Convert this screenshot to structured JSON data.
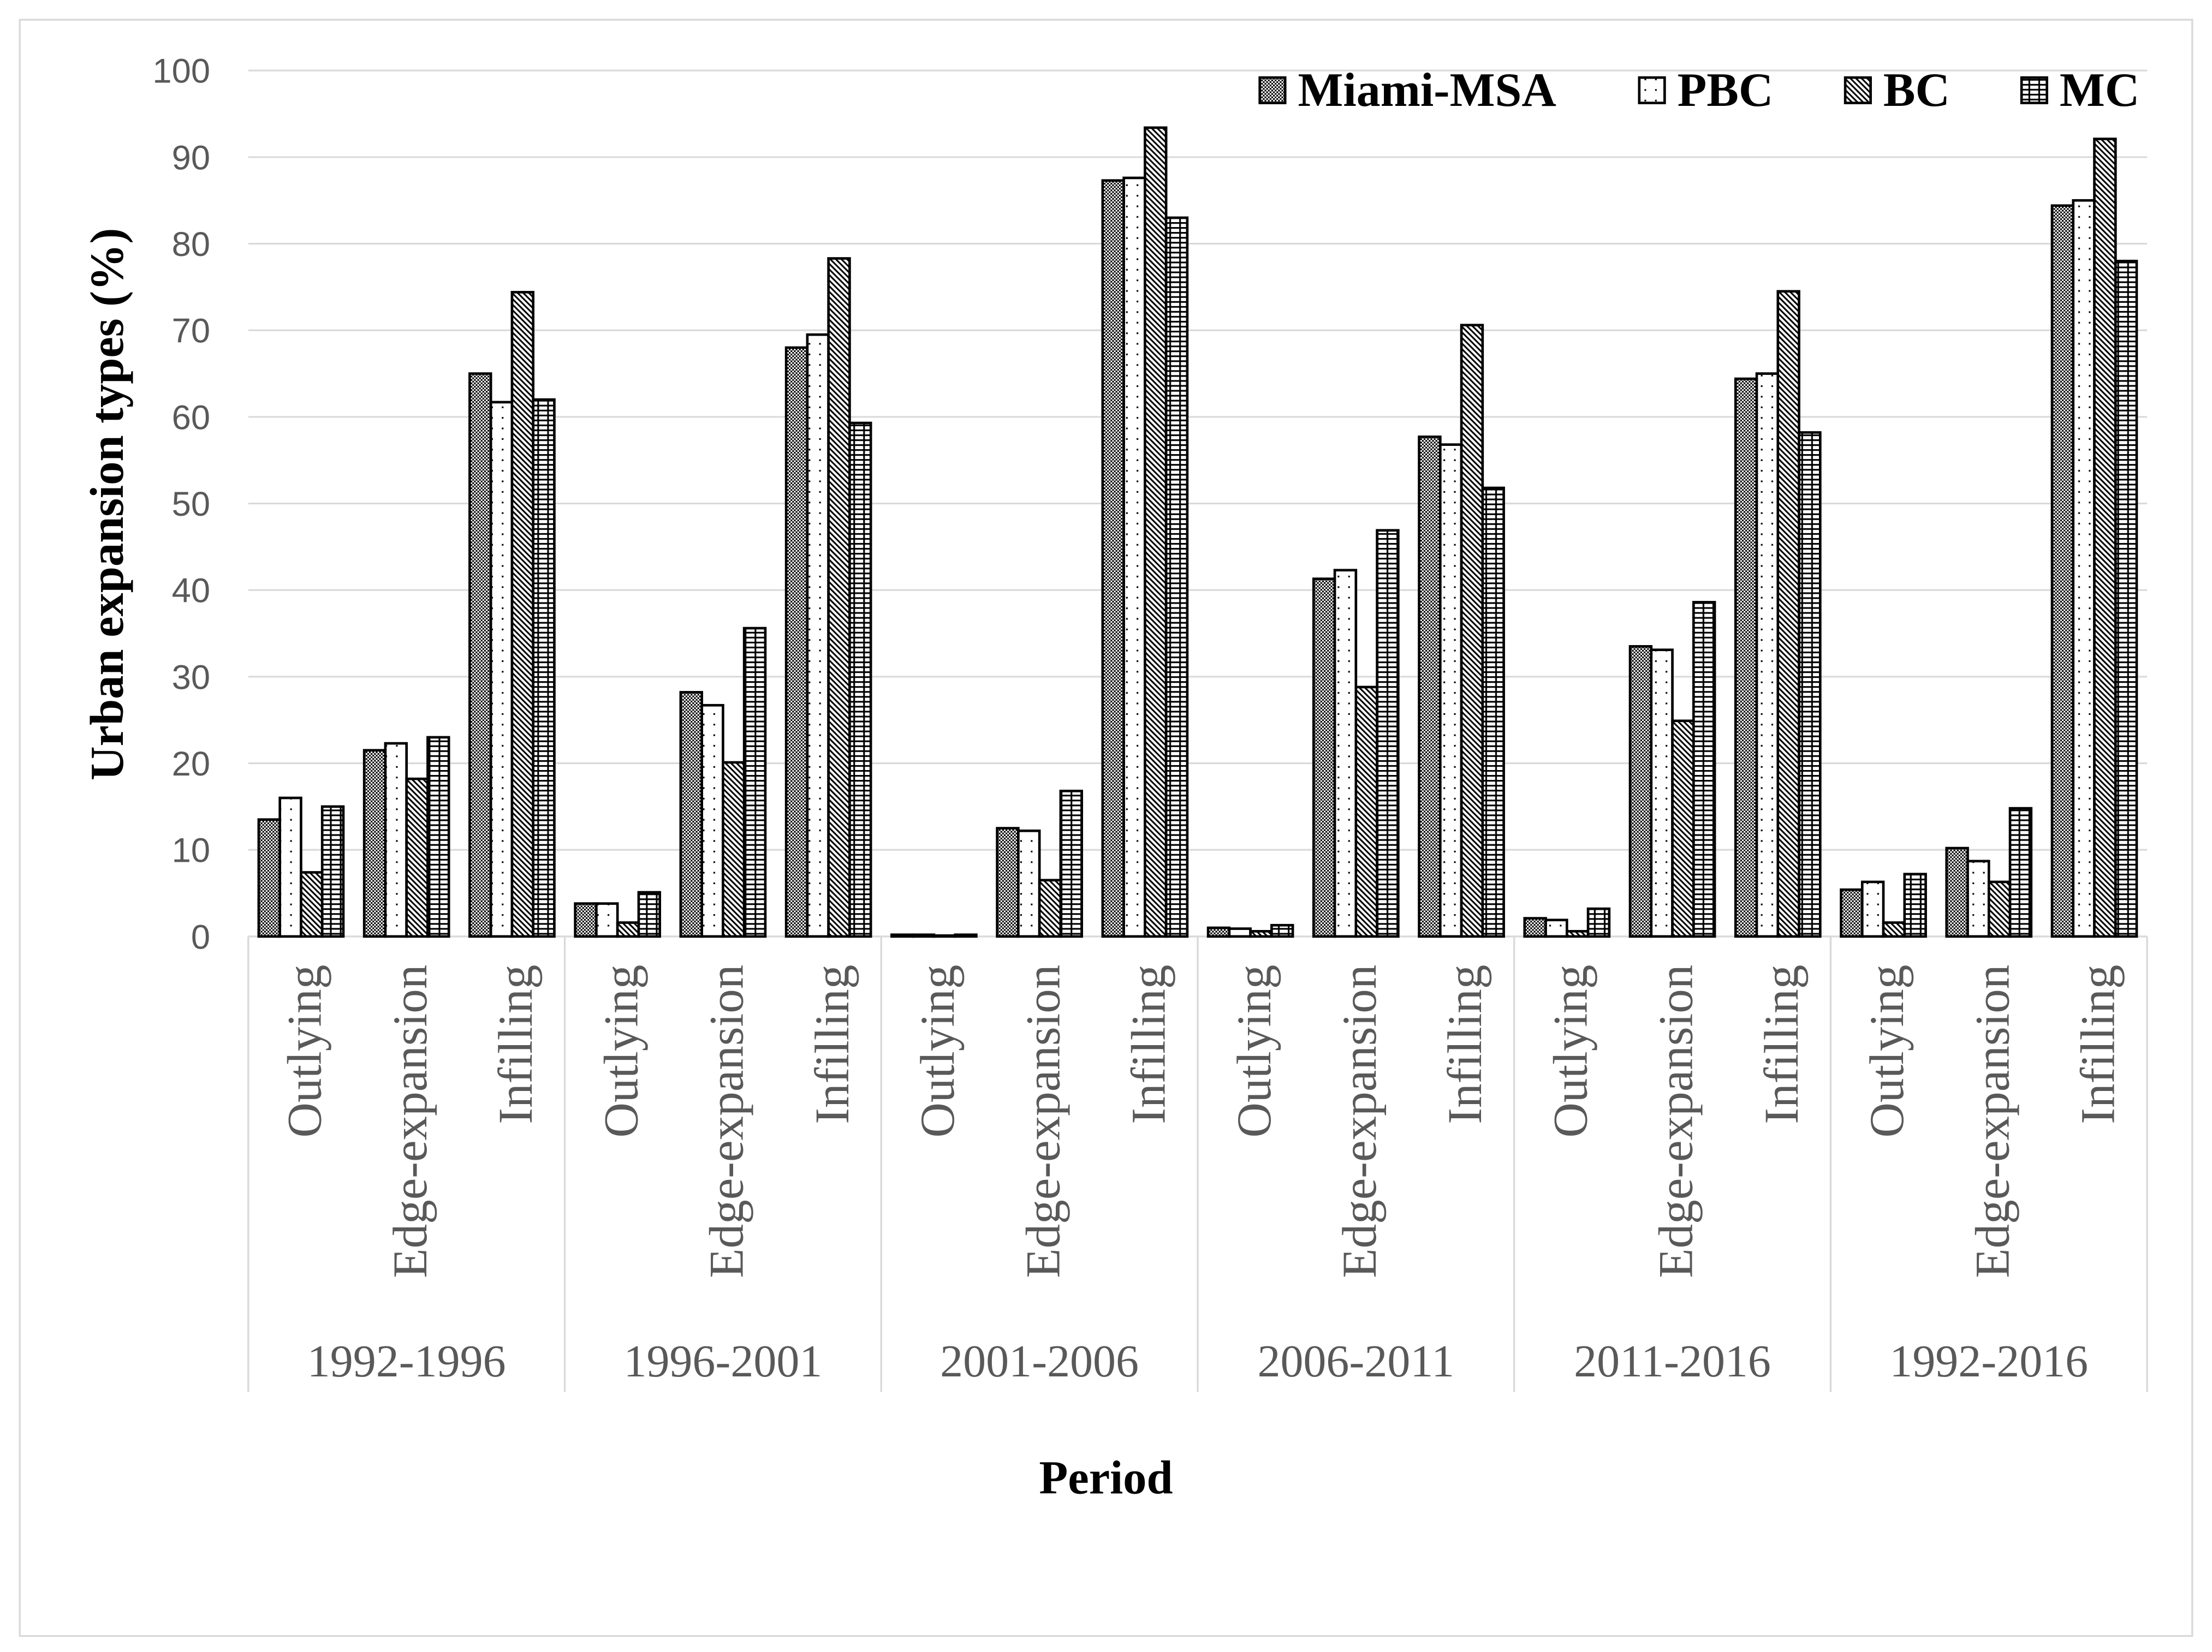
{
  "chart_data": {
    "type": "bar",
    "xlabel": "Period",
    "ylabel": "Urban expansion types (%)",
    "ylim": [
      0,
      100
    ],
    "yticks": [
      0,
      10,
      20,
      30,
      40,
      50,
      60,
      70,
      80,
      90,
      100
    ],
    "grid": true,
    "legend_position": "top-right",
    "categories": [
      {
        "period": "1992-1996",
        "types": [
          "Outlying",
          "Edge-expansion",
          "Infilling"
        ]
      },
      {
        "period": "1996-2001",
        "types": [
          "Outlying",
          "Edge-expansion",
          "Infilling"
        ]
      },
      {
        "period": "2001-2006",
        "types": [
          "Outlying",
          "Edge-expansion",
          "Infilling"
        ]
      },
      {
        "period": "2006-2011",
        "types": [
          "Outlying",
          "Edge-expansion",
          "Infilling"
        ]
      },
      {
        "period": "2011-2016",
        "types": [
          "Outlying",
          "Edge-expansion",
          "Infilling"
        ]
      },
      {
        "period": "1992-2016",
        "types": [
          "Outlying",
          "Edge-expansion",
          "Infilling"
        ]
      }
    ],
    "series": [
      {
        "name": "Miami-MSA",
        "values": [
          [
            13.5,
            21.5,
            65.0
          ],
          [
            3.8,
            28.2,
            68.0
          ],
          [
            0.2,
            12.5,
            87.3
          ],
          [
            1.0,
            41.3,
            57.7
          ],
          [
            2.1,
            33.5,
            64.4
          ],
          [
            5.4,
            10.2,
            84.4
          ]
        ]
      },
      {
        "name": "PBC",
        "values": [
          [
            16.0,
            22.3,
            61.7
          ],
          [
            3.8,
            26.7,
            69.5
          ],
          [
            0.2,
            12.2,
            87.6
          ],
          [
            0.9,
            42.3,
            56.8
          ],
          [
            1.9,
            33.1,
            65.0
          ],
          [
            6.3,
            8.7,
            85.0
          ]
        ]
      },
      {
        "name": "BC",
        "values": [
          [
            7.4,
            18.2,
            74.4
          ],
          [
            1.6,
            20.1,
            78.3
          ],
          [
            0.1,
            6.5,
            93.4
          ],
          [
            0.6,
            28.8,
            70.6
          ],
          [
            0.6,
            24.9,
            74.5
          ],
          [
            1.6,
            6.3,
            92.1
          ]
        ]
      },
      {
        "name": "MC",
        "values": [
          [
            15.0,
            23.0,
            62.0
          ],
          [
            5.1,
            35.6,
            59.3
          ],
          [
            0.2,
            16.8,
            83.0
          ],
          [
            1.3,
            46.9,
            51.8
          ],
          [
            3.2,
            38.6,
            58.2
          ],
          [
            7.2,
            14.8,
            78.0
          ]
        ]
      }
    ]
  },
  "colors": {
    "bar_outline": "#000000",
    "gridline": "#d9d9d9",
    "axis_text": "#595959",
    "title_text": "#000000",
    "chart_border": "#d9d9d9"
  }
}
